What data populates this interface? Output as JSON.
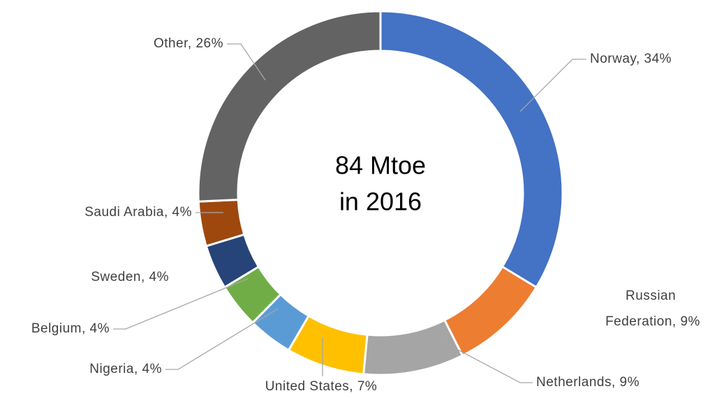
{
  "chart_data": {
    "type": "donut",
    "center_text": [
      "84 Mtoe",
      "in 2016"
    ],
    "values": [
      34,
      9,
      9,
      7,
      4,
      4,
      4,
      4,
      26
    ],
    "value_labels": [
      "Norway, 34%",
      "Russian Federation, 9%",
      "Netherlands, 9%",
      "United States, 7%",
      "Nigeria, 4%",
      "Belgium, 4%",
      "Sweden, 4%",
      "Saudi Arabia, 4%",
      "Other, 26%"
    ],
    "colors": [
      "#4472c4",
      "#ed7d31",
      "#a5a5a5",
      "#ffc000",
      "#5b9bd5",
      "#70ad47",
      "#264478",
      "#9e480e",
      "#636363"
    ]
  }
}
